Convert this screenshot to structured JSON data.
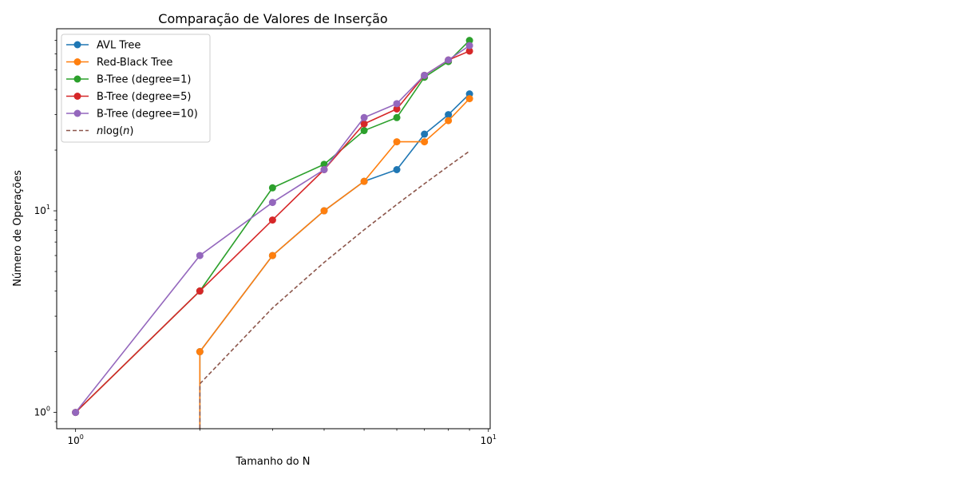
{
  "chart_data": {
    "type": "line",
    "title": "Comparação de Valores de Inserção",
    "xlabel": "Tamanho do N",
    "ylabel": "Número de Operações",
    "xscale": "log",
    "yscale": "log",
    "xlim": [
      0.9,
      10.1
    ],
    "ylim": [
      0.83,
      80
    ],
    "grid": false,
    "legend_position": "top-left",
    "x_ticks": [
      {
        "value": 1,
        "base": "10",
        "exp": "0"
      },
      {
        "value": 10,
        "base": "10",
        "exp": "1"
      }
    ],
    "y_ticks": [
      {
        "value": 1,
        "base": "10",
        "exp": "0"
      },
      {
        "value": 10,
        "base": "10",
        "exp": "1"
      }
    ],
    "series": [
      {
        "name": "AVL Tree",
        "color": "#1f77b4",
        "style": "solid-marker",
        "x": [
          1,
          2,
          2,
          3,
          4,
          5,
          6,
          7,
          8,
          9
        ],
        "y": [
          null,
          0.5,
          2,
          6,
          10,
          14,
          16,
          24,
          30,
          38
        ]
      },
      {
        "name": "Red-Black Tree",
        "color": "#ff7f0e",
        "style": "solid-marker",
        "x": [
          1,
          2,
          2,
          3,
          4,
          5,
          6,
          7,
          8,
          9
        ],
        "y": [
          null,
          0.5,
          2,
          6,
          10,
          14,
          22,
          22,
          28,
          36
        ]
      },
      {
        "name": "B-Tree (degree=1)",
        "color": "#2ca02c",
        "style": "solid-marker",
        "x": [
          1,
          2,
          3,
          4,
          5,
          6,
          7,
          8,
          9
        ],
        "y": [
          1,
          4,
          13,
          17,
          25,
          29,
          46,
          55,
          70
        ]
      },
      {
        "name": "B-Tree (degree=5)",
        "color": "#d62728",
        "style": "solid-marker",
        "x": [
          1,
          2,
          3,
          4,
          5,
          6,
          7,
          8,
          9
        ],
        "y": [
          1,
          4,
          9,
          16,
          27,
          32,
          47,
          56,
          62
        ]
      },
      {
        "name": "B-Tree (degree=10)",
        "color": "#9467bd",
        "style": "solid-marker",
        "x": [
          1,
          2,
          3,
          4,
          5,
          6,
          7,
          8,
          9
        ],
        "y": [
          1,
          6,
          11,
          16,
          29,
          34,
          47,
          56,
          66
        ]
      },
      {
        "name_prefix": "n",
        "name_mid": "log(",
        "name_var": "n",
        "name_suffix": ")",
        "color": "#8c564b",
        "style": "dashed",
        "x": [
          2,
          2,
          3,
          4,
          5,
          6,
          7,
          8,
          9
        ],
        "y": [
          0.5,
          1.386,
          3.296,
          5.545,
          8.047,
          10.751,
          13.621,
          16.636,
          19.775
        ]
      }
    ]
  }
}
